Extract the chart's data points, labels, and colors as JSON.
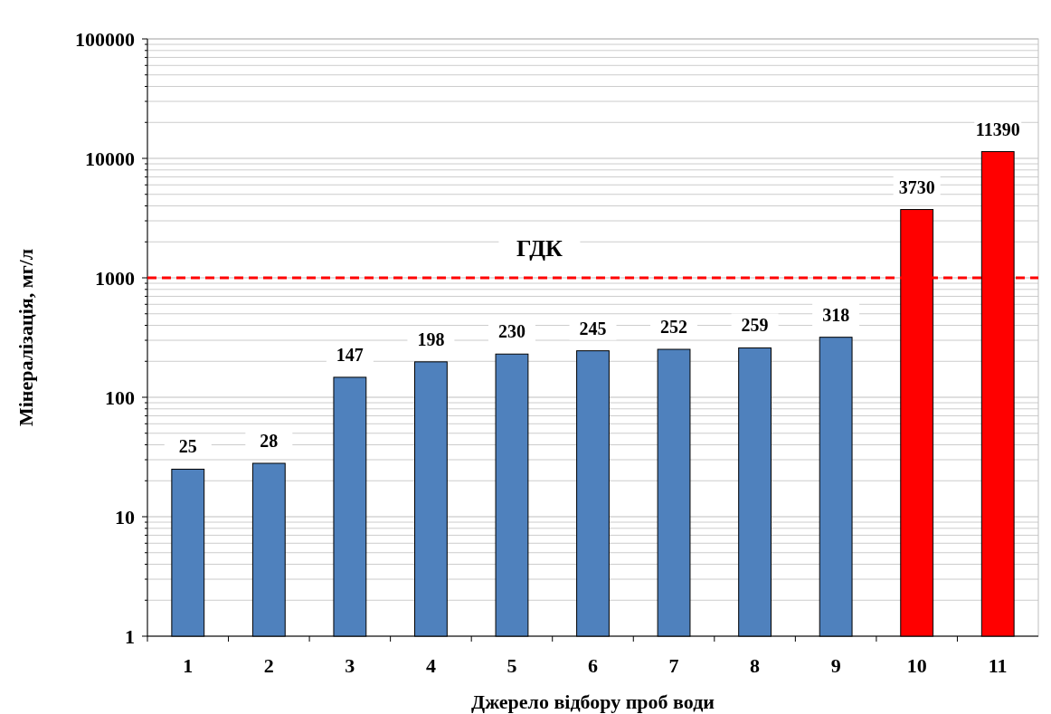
{
  "chart_data": {
    "type": "bar",
    "xlabel": "Джерело відбору проб води",
    "ylabel": "Мінералізація, мг/л",
    "categories": [
      "1",
      "2",
      "3",
      "4",
      "5",
      "6",
      "7",
      "8",
      "9",
      "10",
      "11"
    ],
    "values": [
      25,
      28,
      147,
      198,
      230,
      245,
      252,
      259,
      318,
      3730,
      11390
    ],
    "colors": [
      "#4f81bd",
      "#4f81bd",
      "#4f81bd",
      "#4f81bd",
      "#4f81bd",
      "#4f81bd",
      "#4f81bd",
      "#4f81bd",
      "#4f81bd",
      "#ff0000",
      "#ff0000"
    ],
    "log": true,
    "ylim": [
      1,
      100000
    ],
    "yticks": [
      1,
      {
        "value": 2,
        "label": null
      },
      {
        "value": 3,
        "label": null
      },
      {
        "value": 4,
        "label": null
      },
      {
        "value": 5,
        "label": null
      },
      {
        "value": 6,
        "label": null
      },
      {
        "value": 7,
        "label": null
      },
      {
        "value": 8,
        "label": null
      },
      {
        "value": 9,
        "label": null
      },
      10,
      {
        "value": 20,
        "label": null
      },
      {
        "value": 30,
        "label": null
      },
      {
        "value": 40,
        "label": null
      },
      {
        "value": 50,
        "label": null
      },
      {
        "value": 60,
        "label": null
      },
      {
        "value": 70,
        "label": null
      },
      {
        "value": 80,
        "label": null
      },
      {
        "value": 90,
        "label": null
      },
      100,
      {
        "value": 200,
        "label": null
      },
      {
        "value": 300,
        "label": null
      },
      {
        "value": 400,
        "label": null
      },
      {
        "value": 500,
        "label": null
      },
      {
        "value": 600,
        "label": null
      },
      {
        "value": 700,
        "label": null
      },
      {
        "value": 800,
        "label": null
      },
      {
        "value": 900,
        "label": null
      },
      1000,
      {
        "value": 2000,
        "label": null
      },
      {
        "value": 3000,
        "label": null
      },
      {
        "value": 4000,
        "label": null
      },
      {
        "value": 5000,
        "label": null
      },
      {
        "value": 6000,
        "label": null
      },
      {
        "value": 7000,
        "label": null
      },
      {
        "value": 8000,
        "label": null
      },
      {
        "value": 9000,
        "label": null
      },
      10000,
      {
        "value": 20000,
        "label": null
      },
      {
        "value": 30000,
        "label": null
      },
      {
        "value": 40000,
        "label": null
      },
      {
        "value": 50000,
        "label": null
      },
      {
        "value": 60000,
        "label": null
      },
      {
        "value": 70000,
        "label": null
      },
      {
        "value": 80000,
        "label": null
      },
      {
        "value": 90000,
        "label": null
      },
      100000
    ],
    "grid": true,
    "data_labels": true,
    "ref_lines": [
      {
        "axis": "y",
        "value": 1000,
        "label": "ГДК",
        "color": "#ff0000",
        "line_style": "dashed"
      }
    ]
  }
}
